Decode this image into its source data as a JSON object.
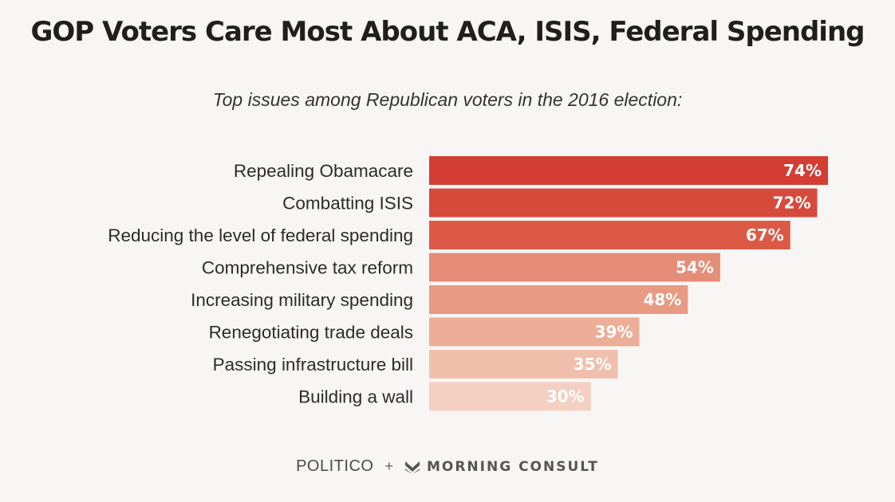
{
  "title": "GOP Voters Care Most About ACA, ISIS, Federal Spending",
  "subtitle": "Top issues among Republican voters in the 2016 election:",
  "footer": {
    "politico": "POLITICO",
    "plus": "+",
    "morning_consult": "MORNING CONSULT",
    "morning_consult_icon": "morning-consult-logo-icon"
  },
  "chart_data": {
    "type": "bar",
    "orientation": "horizontal",
    "categories": [
      "Repealing Obamacare",
      "Combatting ISIS",
      "Reducing the level of federal spending",
      "Comprehensive tax reform",
      "Increasing military spending",
      "Renegotiating trade deals",
      "Passing infrastructure bill",
      "Building a wall"
    ],
    "values": [
      74,
      72,
      67,
      54,
      48,
      39,
      35,
      30
    ],
    "data_labels": [
      "74%",
      "72%",
      "67%",
      "54%",
      "48%",
      "39%",
      "35%",
      "30%"
    ],
    "unit": "%",
    "title": "GOP Voters Care Most About ACA, ISIS, Federal Spending",
    "subtitle": "Top issues among Republican voters in the 2016 election:",
    "xlabel": "",
    "ylabel": "",
    "xlim": [
      0,
      74
    ],
    "grid": false,
    "legend": "none",
    "colors": [
      "#d43d33",
      "#d64a3c",
      "#dc5a45",
      "#e58d77",
      "#e89a83",
      "#ecae98",
      "#f0c0ad",
      "#f3d0c2"
    ]
  }
}
